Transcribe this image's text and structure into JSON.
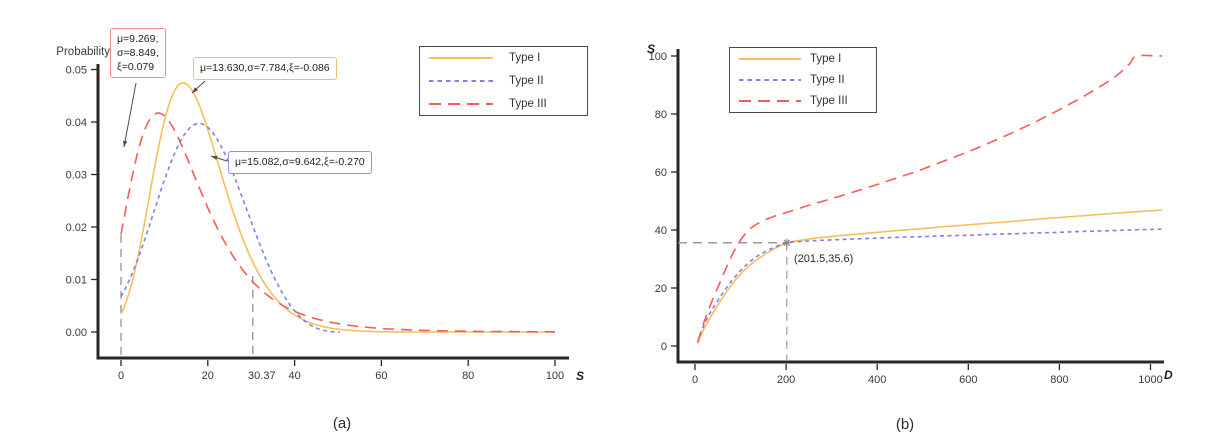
{
  "figure": {
    "colors": {
      "type1": "#F8BE5A",
      "type2": "#8080EE",
      "type3": "#F95B5B",
      "axis": "#2B2523",
      "tick_text": "#3a3a3a",
      "guide": "#9a9a9a",
      "arrow": "#4a4a4a",
      "marker": "#8a8a8a",
      "legend_border": "#4a4a4a",
      "box_red": "#F28B8B",
      "box_orange": "#F0C264",
      "box_blue": "#9191E9"
    },
    "panel_a": {
      "caption": "(a)",
      "y_axis_title": "Probability",
      "x_axis_title": "S",
      "legend": [
        "Type I",
        "Type II",
        "Type III"
      ],
      "annotations": {
        "type3_box_lines": [
          "μ=9.269,",
          "σ=8.849,",
          "ξ=0.079"
        ],
        "type1_box_text": "μ=13.630,σ=7.784,ξ=-0.086",
        "type2_box_text": "μ=15.082,σ=9.642,ξ=-0.270"
      },
      "special_x_label": "30.37"
    },
    "panel_b": {
      "caption": "(b)",
      "y_axis_title": "S",
      "x_axis_title": "D",
      "legend": [
        "Type I",
        "Type II",
        "Type III"
      ],
      "point_label": "(201.5,35.6)"
    }
  },
  "chart_data": [
    {
      "type": "line",
      "panel": "a",
      "title": "",
      "xlabel": "S",
      "ylabel": "Probability",
      "xlim": [
        0,
        100
      ],
      "ylim": [
        0,
        0.05
      ],
      "x_ticks": [
        0,
        20,
        40,
        60,
        80,
        100
      ],
      "y_ticks": [
        0,
        0.01,
        0.02,
        0.03,
        0.04,
        0.05
      ],
      "y_tick_decimals": 2,
      "grid": false,
      "legend_position": "top-right-outside",
      "series": [
        {
          "key": "type1",
          "name": "Type I",
          "style": "solid",
          "color_key": "type1",
          "gev_params": {
            "mu": 13.63,
            "sigma": 7.784,
            "xi": -0.086
          },
          "x_range": [
            0,
            100
          ]
        },
        {
          "key": "type2",
          "name": "Type II",
          "style": "dash-short",
          "color_key": "type2",
          "gev_params": {
            "mu": 15.082,
            "sigma": 9.642,
            "xi": -0.27
          },
          "x_range": [
            0,
            50.6
          ]
        },
        {
          "key": "type3",
          "name": "Type III",
          "style": "dash-long",
          "color_key": "type3",
          "gev_params": {
            "mu": 9.269,
            "sigma": 8.849,
            "xi": 0.079
          },
          "x_range": [
            0,
            100
          ]
        }
      ],
      "guides": [
        {
          "x": 0,
          "y_top": 0.0185
        },
        {
          "x": 30.37,
          "y_top": 0.0107
        }
      ],
      "special_tick": {
        "x": 30.37,
        "label": "30.37"
      }
    },
    {
      "type": "line",
      "panel": "b",
      "title": "",
      "xlabel": "D",
      "ylabel": "S",
      "xlim": [
        0,
        1000
      ],
      "ylim": [
        0,
        100
      ],
      "x_ticks": [
        0,
        200,
        400,
        600,
        800,
        1000
      ],
      "y_ticks": [
        0,
        20,
        40,
        60,
        80,
        100
      ],
      "y_tick_decimals": 0,
      "grid": false,
      "legend_position": "top-left-inside",
      "series": [
        {
          "key": "type1",
          "name": "Type I",
          "style": "solid",
          "color_key": "type1",
          "points": [
            [
              6,
              1
            ],
            [
              15,
              4.5
            ],
            [
              25,
              7.5
            ],
            [
              40,
              11.5
            ],
            [
              60,
              16.5
            ],
            [
              80,
              21
            ],
            [
              100,
              24.8
            ],
            [
              120,
              27.8
            ],
            [
              140,
              30.2
            ],
            [
              160,
              32.2
            ],
            [
              180,
              34
            ],
            [
              201.5,
              35.6
            ],
            [
              230,
              36.4
            ],
            [
              260,
              37.1
            ],
            [
              300,
              37.8
            ],
            [
              350,
              38.5
            ],
            [
              400,
              39.2
            ],
            [
              450,
              39.9
            ],
            [
              500,
              40.5
            ],
            [
              550,
              41.2
            ],
            [
              600,
              41.8
            ],
            [
              650,
              42.4
            ],
            [
              700,
              43
            ],
            [
              750,
              43.7
            ],
            [
              800,
              44.3
            ],
            [
              850,
              44.9
            ],
            [
              900,
              45.5
            ],
            [
              950,
              46.1
            ],
            [
              1000,
              46.6
            ],
            [
              1025,
              46.9
            ]
          ]
        },
        {
          "key": "type2",
          "name": "Type II",
          "style": "dash-short",
          "color_key": "type2",
          "points": [
            [
              6,
              1.2
            ],
            [
              15,
              5.5
            ],
            [
              25,
              9
            ],
            [
              40,
              13.2
            ],
            [
              60,
              18
            ],
            [
              80,
              22.3
            ],
            [
              100,
              26
            ],
            [
              120,
              29
            ],
            [
              140,
              31.3
            ],
            [
              160,
              33
            ],
            [
              180,
              34.4
            ],
            [
              201.5,
              35.6
            ],
            [
              230,
              36
            ],
            [
              260,
              36.3
            ],
            [
              300,
              36.6
            ],
            [
              350,
              36.9
            ],
            [
              400,
              37.2
            ],
            [
              450,
              37.5
            ],
            [
              500,
              37.7
            ],
            [
              550,
              38
            ],
            [
              600,
              38.2
            ],
            [
              650,
              38.5
            ],
            [
              700,
              38.7
            ],
            [
              750,
              39
            ],
            [
              800,
              39.2
            ],
            [
              850,
              39.5
            ],
            [
              900,
              39.7
            ],
            [
              950,
              40
            ],
            [
              1000,
              40.2
            ],
            [
              1025,
              40.3
            ]
          ]
        },
        {
          "key": "type3",
          "name": "Type III",
          "style": "dash-long",
          "color_key": "type3",
          "points": [
            [
              6,
              1.3
            ],
            [
              15,
              6
            ],
            [
              25,
              10.5
            ],
            [
              40,
              16.5
            ],
            [
              55,
              22
            ],
            [
              70,
              27.5
            ],
            [
              85,
              32.5
            ],
            [
              100,
              36.5
            ],
            [
              115,
              39.5
            ],
            [
              130,
              41.5
            ],
            [
              150,
              43.2
            ],
            [
              175,
              44.8
            ],
            [
              200,
              46
            ],
            [
              250,
              48.5
            ],
            [
              300,
              50.8
            ],
            [
              350,
              53.2
            ],
            [
              400,
              55.7
            ],
            [
              450,
              58.3
            ],
            [
              500,
              61
            ],
            [
              550,
              64
            ],
            [
              600,
              67
            ],
            [
              650,
              70.3
            ],
            [
              700,
              73.8
            ],
            [
              750,
              77.5
            ],
            [
              800,
              81.5
            ],
            [
              850,
              85.8
            ],
            [
              900,
              90.5
            ],
            [
              930,
              93.8
            ],
            [
              955,
              97.5
            ],
            [
              970,
              100
            ],
            [
              1025,
              100
            ]
          ]
        }
      ],
      "marked_point": {
        "x": 201.5,
        "y": 35.6,
        "label": "(201.5,35.6)"
      }
    }
  ]
}
